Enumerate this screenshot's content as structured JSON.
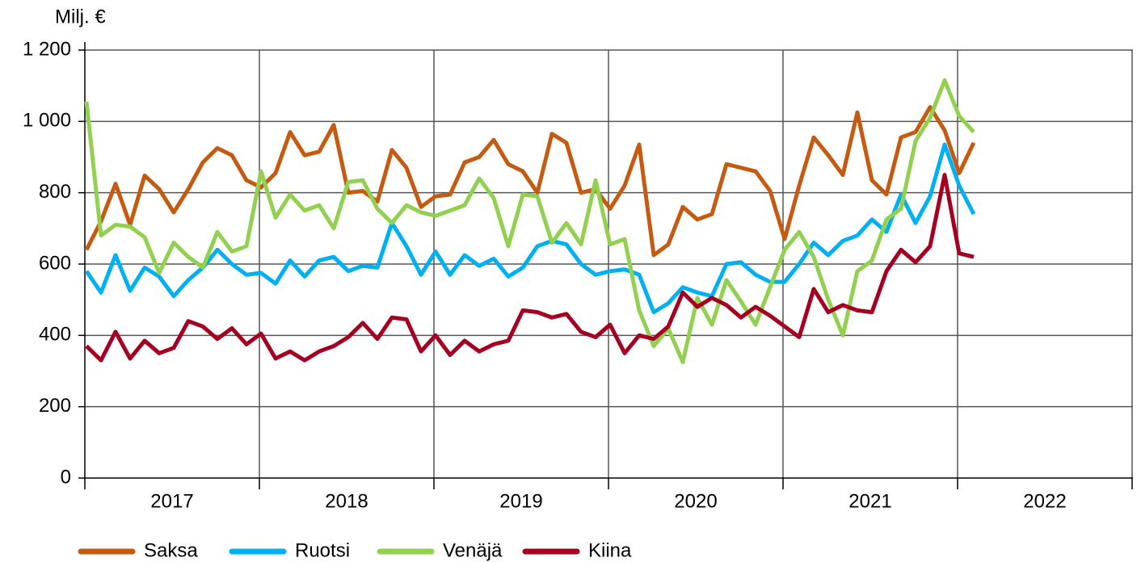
{
  "chart_data": {
    "type": "line",
    "y_axis_label": "Milj. €",
    "categories": [
      null,
      null,
      null,
      null,
      null,
      null,
      null,
      null,
      null,
      null,
      null,
      null,
      null,
      null,
      null,
      null,
      null,
      null,
      null,
      null,
      null,
      null,
      null,
      null,
      null,
      null,
      null,
      null,
      null,
      null,
      null,
      null,
      null,
      null,
      null,
      null,
      null,
      null,
      null,
      null,
      null,
      null,
      null,
      null,
      null,
      null,
      null,
      null,
      null,
      null,
      null,
      null,
      null,
      null,
      null,
      null,
      null,
      null,
      null,
      null,
      null,
      null
    ],
    "year_labels": [
      "2017",
      "2018",
      "2019",
      "2020",
      "2021",
      "2022"
    ],
    "ylim": [
      0,
      1200
    ],
    "yticks": [
      0,
      200,
      400,
      600,
      800,
      {
        "value": 1000,
        "label": "1 000"
      },
      {
        "value": 1200,
        "label": "1 200"
      }
    ],
    "grid": true,
    "legend": "bottom",
    "series": [
      {
        "name": "Saksa",
        "color": "#c55a11",
        "values": [
          640,
          720,
          825,
          710,
          848,
          810,
          745,
          810,
          885,
          925,
          905,
          835,
          815,
          855,
          970,
          905,
          915,
          990,
          800,
          805,
          775,
          920,
          870,
          760,
          790,
          795,
          885,
          900,
          948,
          880,
          860,
          800,
          965,
          940,
          800,
          810,
          755,
          820,
          935,
          625,
          655,
          760,
          725,
          740,
          880,
          870,
          860,
          805,
          670,
          820,
          955,
          905,
          850,
          1025,
          835,
          795,
          955,
          970,
          1040,
          975,
          855,
          940
        ]
      },
      {
        "name": "Ruotsi",
        "color": "#00b0f0",
        "values": [
          580,
          520,
          625,
          525,
          590,
          565,
          510,
          555,
          590,
          640,
          600,
          570,
          575,
          545,
          610,
          565,
          610,
          620,
          580,
          595,
          590,
          715,
          650,
          570,
          635,
          570,
          625,
          595,
          615,
          565,
          590,
          650,
          665,
          655,
          600,
          570,
          580,
          585,
          570,
          465,
          490,
          535,
          520,
          510,
          600,
          605,
          570,
          550,
          550,
          600,
          660,
          625,
          665,
          680,
          725,
          690,
          795,
          715,
          790,
          935,
          820,
          740
        ]
      },
      {
        "name": "Venäjä",
        "color": "#92d050",
        "values": [
          1055,
          680,
          710,
          705,
          675,
          575,
          660,
          620,
          590,
          690,
          635,
          650,
          860,
          730,
          795,
          750,
          765,
          700,
          830,
          835,
          755,
          715,
          765,
          745,
          735,
          750,
          765,
          840,
          785,
          650,
          795,
          790,
          660,
          715,
          655,
          835,
          655,
          670,
          470,
          370,
          420,
          325,
          505,
          430,
          555,
          495,
          430,
          535,
          640,
          690,
          620,
          500,
          400,
          580,
          610,
          725,
          755,
          945,
          1010,
          1115,
          1015,
          970
        ]
      },
      {
        "name": "Kiina",
        "color": "#a50021",
        "values": [
          370,
          330,
          410,
          335,
          385,
          350,
          365,
          440,
          425,
          390,
          420,
          375,
          405,
          335,
          355,
          330,
          355,
          370,
          395,
          435,
          390,
          450,
          445,
          355,
          400,
          345,
          385,
          355,
          375,
          385,
          470,
          465,
          450,
          460,
          410,
          395,
          430,
          350,
          400,
          390,
          425,
          520,
          480,
          505,
          485,
          450,
          480,
          455,
          425,
          395,
          530,
          465,
          485,
          470,
          465,
          580,
          640,
          605,
          650,
          850,
          630,
          620
        ]
      }
    ]
  }
}
